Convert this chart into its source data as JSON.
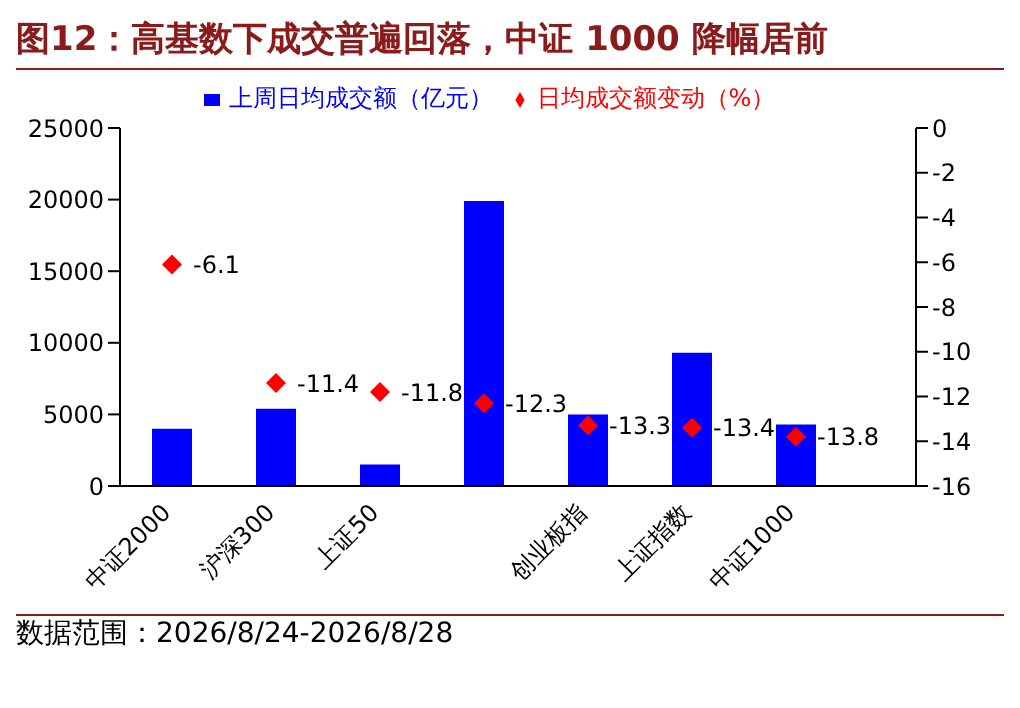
{
  "chart_data": {
    "type": "bar",
    "title": "图12：高基数下成交普遍回落，中证 1000 降幅居前",
    "categories": [
      "中证2000",
      "沪深300",
      "上证50",
      null,
      "创业板指",
      "上证指数",
      "中证1000"
    ],
    "series": [
      {
        "name": "上周日均成交额（亿元）",
        "color": "#0000ff",
        "values": [
          4000,
          5400,
          1500,
          19900,
          5000,
          9300,
          4300
        ]
      },
      {
        "name": "日均成交额变动（%）",
        "type": "scatter",
        "axis": "y2",
        "color": "#ff0000",
        "marker": "diamond",
        "data_labels": true,
        "values": [
          -6.1,
          -11.4,
          -11.8,
          -12.3,
          -13.3,
          -13.4,
          -13.8
        ]
      }
    ],
    "ylim": [
      0,
      25000
    ],
    "yticks": [
      0,
      5000,
      10000,
      15000,
      20000,
      25000
    ],
    "y2lim": [
      -16,
      0
    ],
    "y2ticks": [
      -16,
      -14,
      -12,
      -10,
      -8,
      -6,
      -4,
      -2,
      0
    ],
    "grid": false,
    "legend": "top",
    "annotations": [
      "数据范围：2026/8/24-2026/8/28"
    ]
  }
}
